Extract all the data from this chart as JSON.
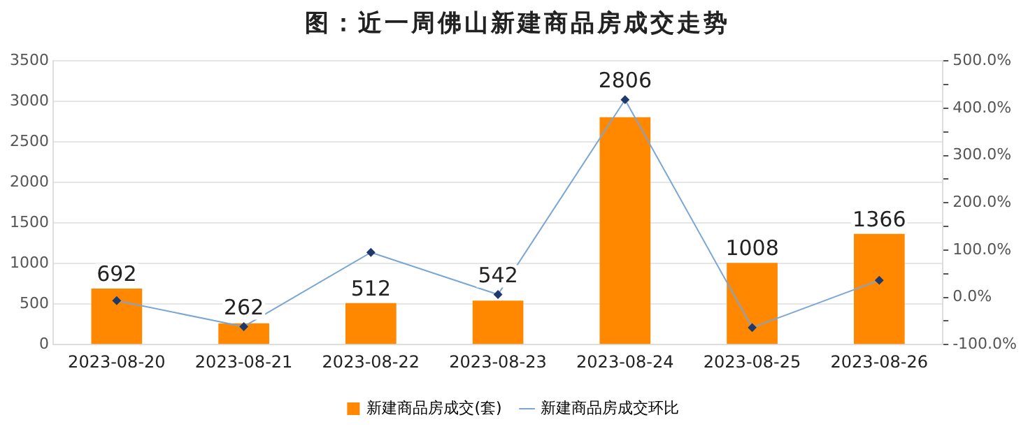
{
  "chart_data": {
    "type": "bar",
    "title": "图：近一周佛山新建商品房成交走势",
    "categories": [
      "2023-08-20",
      "2023-08-21",
      "2023-08-22",
      "2023-08-23",
      "2023-08-24",
      "2023-08-25",
      "2023-08-26"
    ],
    "series": [
      {
        "name": "新建商品房成交(套)",
        "color": "#ff8800",
        "values": [
          692,
          262,
          512,
          542,
          2806,
          1008,
          1366
        ],
        "value_labels": [
          "692",
          "262",
          "512",
          "542",
          "2806",
          "1008",
          "1366"
        ]
      },
      {
        "name": "新建商品房成交环比",
        "type": "line",
        "axis": "y2",
        "color": "#7aa6d6",
        "values": [
          -7,
          -62,
          95,
          6,
          418,
          -64,
          36
        ]
      }
    ],
    "ylim": [
      0,
      3500
    ],
    "yticks": [
      0,
      500,
      1000,
      1500,
      2000,
      2500,
      3000,
      3500
    ],
    "y2lim": [
      -100,
      500
    ],
    "y2ticks": [
      {
        "value": -100,
        "label": "-100.0%"
      },
      {
        "value": -50,
        "label": null
      },
      {
        "value": 0,
        "label": "0.0%"
      },
      {
        "value": 50,
        "label": null
      },
      {
        "value": 100,
        "label": "100.0%"
      },
      {
        "value": 150,
        "label": null
      },
      {
        "value": 200,
        "label": "200.0%"
      },
      {
        "value": 250,
        "label": null
      },
      {
        "value": 300,
        "label": "300.0%"
      },
      {
        "value": 350,
        "label": null
      },
      {
        "value": 400,
        "label": "400.0%"
      },
      {
        "value": 450,
        "label": null
      },
      {
        "value": 500,
        "label": "500.0%"
      }
    ],
    "grid": "y",
    "legend": "bottom",
    "marker": "diamond"
  }
}
